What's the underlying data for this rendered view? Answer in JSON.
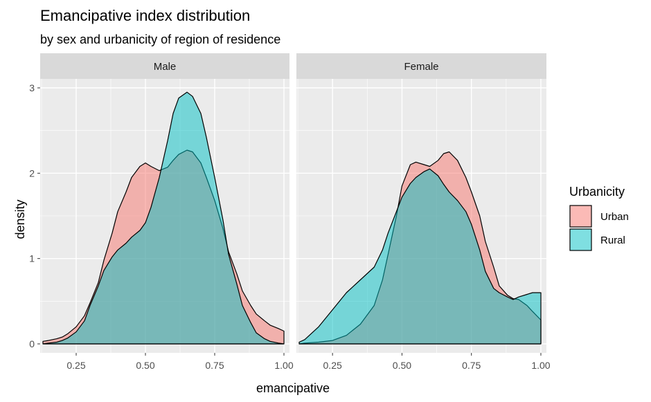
{
  "chart_data": {
    "type": "area",
    "subtype": "density, faceted",
    "title": "Emancipative index distribution",
    "subtitle": "by sex and urbanicity of region of residence",
    "xlabel": "emancipative",
    "ylabel": "density",
    "xlim": [
      0.12,
      1.02
    ],
    "ylim": [
      -0.12,
      3.15
    ],
    "xticks": [
      0.25,
      0.5,
      0.75,
      1.0
    ],
    "xtick_labels": [
      "0.25",
      "0.50",
      "0.75",
      "1.00"
    ],
    "yticks": [
      0,
      1,
      2,
      3
    ],
    "ytick_labels": [
      "0",
      "1",
      "2",
      "3"
    ],
    "grid": true,
    "legend": {
      "title": "Urbanicity",
      "position": "right",
      "entries": [
        {
          "name": "Urban",
          "color": "#F8766D"
        },
        {
          "name": "Rural",
          "color": "#00BFC4"
        }
      ]
    },
    "fill_alpha": 0.5,
    "facets": [
      {
        "label": "Male",
        "series": [
          {
            "name": "Urban",
            "x": [
              0.13,
              0.15,
              0.18,
              0.2,
              0.22,
              0.25,
              0.28,
              0.3,
              0.33,
              0.35,
              0.38,
              0.4,
              0.43,
              0.45,
              0.48,
              0.5,
              0.52,
              0.55,
              0.58,
              0.6,
              0.62,
              0.65,
              0.67,
              0.7,
              0.72,
              0.75,
              0.78,
              0.8,
              0.83,
              0.85,
              0.88,
              0.9,
              0.93,
              0.95,
              0.98,
              1.0
            ],
            "y": [
              0.03,
              0.04,
              0.06,
              0.08,
              0.12,
              0.2,
              0.33,
              0.48,
              0.72,
              0.98,
              1.3,
              1.55,
              1.78,
              1.95,
              2.08,
              2.12,
              2.08,
              2.03,
              2.07,
              2.15,
              2.22,
              2.27,
              2.25,
              2.12,
              1.95,
              1.68,
              1.35,
              1.08,
              0.82,
              0.62,
              0.45,
              0.35,
              0.27,
              0.22,
              0.18,
              0.15
            ]
          },
          {
            "name": "Rural",
            "x": [
              0.13,
              0.15,
              0.18,
              0.2,
              0.22,
              0.25,
              0.28,
              0.3,
              0.33,
              0.35,
              0.38,
              0.4,
              0.43,
              0.45,
              0.48,
              0.5,
              0.52,
              0.55,
              0.58,
              0.6,
              0.62,
              0.65,
              0.67,
              0.7,
              0.72,
              0.75,
              0.78,
              0.8,
              0.83,
              0.85,
              0.88,
              0.9,
              0.93,
              0.95,
              0.98,
              1.0
            ],
            "y": [
              0.0,
              0.01,
              0.02,
              0.04,
              0.07,
              0.14,
              0.27,
              0.45,
              0.68,
              0.86,
              1.02,
              1.1,
              1.18,
              1.25,
              1.33,
              1.42,
              1.6,
              1.95,
              2.38,
              2.7,
              2.88,
              2.95,
              2.9,
              2.7,
              2.42,
              1.95,
              1.45,
              1.05,
              0.7,
              0.45,
              0.25,
              0.13,
              0.06,
              0.03,
              0.01,
              0.0
            ]
          }
        ]
      },
      {
        "label": "Female",
        "series": [
          {
            "name": "Urban",
            "x": [
              0.13,
              0.15,
              0.2,
              0.25,
              0.3,
              0.35,
              0.4,
              0.43,
              0.45,
              0.48,
              0.5,
              0.53,
              0.55,
              0.58,
              0.6,
              0.63,
              0.65,
              0.67,
              0.7,
              0.73,
              0.75,
              0.78,
              0.8,
              0.83,
              0.85,
              0.88,
              0.9,
              0.92,
              0.95,
              0.97,
              1.0
            ],
            "y": [
              0.0,
              0.01,
              0.02,
              0.04,
              0.1,
              0.23,
              0.45,
              0.75,
              1.05,
              1.5,
              1.85,
              2.1,
              2.13,
              2.1,
              2.08,
              2.15,
              2.23,
              2.25,
              2.15,
              1.95,
              1.78,
              1.5,
              1.2,
              0.9,
              0.68,
              0.57,
              0.53,
              0.52,
              0.45,
              0.38,
              0.28
            ]
          },
          {
            "name": "Rural",
            "x": [
              0.13,
              0.15,
              0.2,
              0.25,
              0.3,
              0.35,
              0.4,
              0.43,
              0.45,
              0.48,
              0.5,
              0.53,
              0.55,
              0.58,
              0.6,
              0.63,
              0.65,
              0.67,
              0.7,
              0.73,
              0.75,
              0.78,
              0.8,
              0.83,
              0.85,
              0.88,
              0.9,
              0.92,
              0.95,
              0.97,
              1.0
            ],
            "y": [
              0.02,
              0.05,
              0.2,
              0.4,
              0.6,
              0.75,
              0.9,
              1.1,
              1.3,
              1.55,
              1.72,
              1.88,
              1.95,
              2.02,
              2.05,
              1.97,
              1.87,
              1.78,
              1.68,
              1.55,
              1.4,
              1.1,
              0.85,
              0.65,
              0.6,
              0.55,
              0.52,
              0.55,
              0.58,
              0.6,
              0.6
            ]
          }
        ]
      }
    ]
  }
}
